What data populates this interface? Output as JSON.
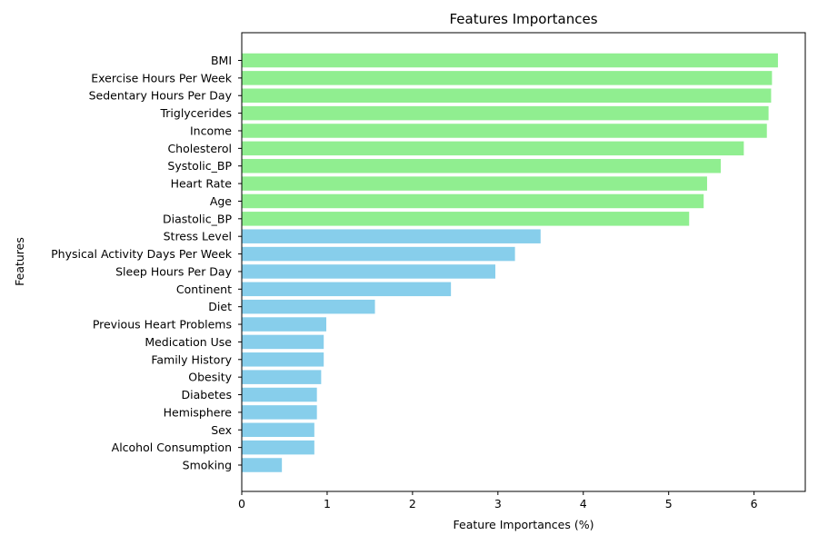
{
  "chart_data": {
    "type": "bar",
    "orientation": "horizontal",
    "title": "Features Importances",
    "xlabel": "Feature Importances (%)",
    "ylabel": "Features",
    "xlim": [
      0,
      6.6
    ],
    "xticks": [
      0,
      1,
      2,
      3,
      4,
      5,
      6
    ],
    "grid": false,
    "categories": [
      "BMI",
      "Exercise Hours Per Week",
      "Sedentary Hours Per Day",
      "Triglycerides",
      "Income",
      "Cholesterol",
      "Systolic_BP",
      "Heart Rate",
      "Age",
      "Diastolic_BP",
      "Stress Level",
      "Physical Activity Days Per Week",
      "Sleep Hours Per Day",
      "Continent",
      "Diet",
      "Previous Heart Problems",
      "Medication Use",
      "Family History",
      "Obesity",
      "Diabetes",
      "Hemisphere",
      "Sex",
      "Alcohol Consumption",
      "Smoking"
    ],
    "values": [
      6.28,
      6.21,
      6.2,
      6.17,
      6.15,
      5.88,
      5.61,
      5.45,
      5.41,
      5.24,
      3.5,
      3.2,
      2.97,
      2.45,
      1.56,
      0.99,
      0.96,
      0.96,
      0.93,
      0.88,
      0.88,
      0.85,
      0.85,
      0.47
    ],
    "colors": {
      "top": "#90ee90",
      "rest": "#87ceeb"
    },
    "top_count": 10
  }
}
